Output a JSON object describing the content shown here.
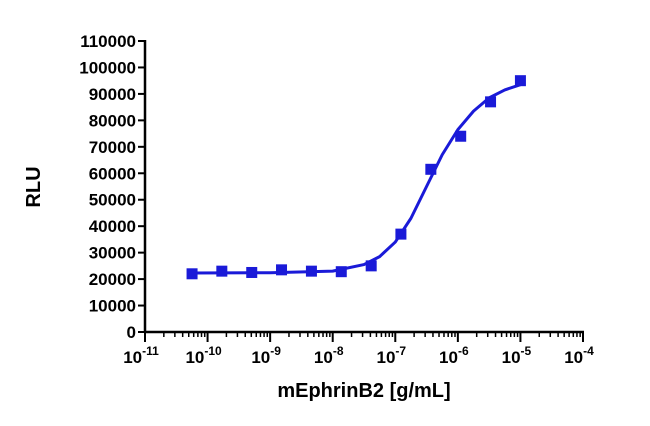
{
  "chart_data": {
    "type": "scatter",
    "xlabel": "mEphrinB2 [g/mL]",
    "ylabel": "RLU",
    "xscale": "log",
    "xlim": [
      1e-11,
      0.0001
    ],
    "ylim": [
      0,
      110000
    ],
    "xticks": [
      {
        "value": 1e-11,
        "label": "10",
        "exponent": "-11"
      },
      {
        "value": 1e-10,
        "label": "10",
        "exponent": "-10"
      },
      {
        "value": 1e-09,
        "label": "10",
        "exponent": "-9"
      },
      {
        "value": 1e-08,
        "label": "10",
        "exponent": "-8"
      },
      {
        "value": 1e-07,
        "label": "10",
        "exponent": "-7"
      },
      {
        "value": 1e-06,
        "label": "10",
        "exponent": "-6"
      },
      {
        "value": 1e-05,
        "label": "10",
        "exponent": "-5"
      },
      {
        "value": 0.0001,
        "label": "10",
        "exponent": "-4"
      }
    ],
    "yticks": [
      0,
      10000,
      20000,
      30000,
      40000,
      50000,
      60000,
      70000,
      80000,
      90000,
      100000,
      110000
    ],
    "series": [
      {
        "kind": "points",
        "color": "#1a1ad8",
        "x": [
          5.65e-11,
          1.69e-10,
          5.08e-10,
          1.52e-09,
          4.57e-09,
          1.37e-08,
          4.12e-08,
          1.23e-07,
          3.7e-07,
          1.11e-06,
          3.33e-06,
          1e-05
        ],
        "values": [
          22000,
          23000,
          22500,
          23500,
          23000,
          22800,
          25000,
          37000,
          61500,
          74000,
          87000,
          95000
        ]
      },
      {
        "kind": "line",
        "color": "#1a1ad8",
        "x": [
          5.65e-11,
          1e-09,
          1e-08,
          3.16e-08,
          5.62e-08,
          1e-07,
          1.78e-07,
          3.16e-07,
          5.62e-07,
          1e-06,
          1.78e-06,
          3.16e-06,
          5.62e-06,
          1e-05
        ],
        "values": [
          22300,
          22400,
          23000,
          25500,
          28500,
          34000,
          43000,
          55000,
          67000,
          76500,
          83500,
          88500,
          91500,
          93500
        ]
      }
    ]
  }
}
